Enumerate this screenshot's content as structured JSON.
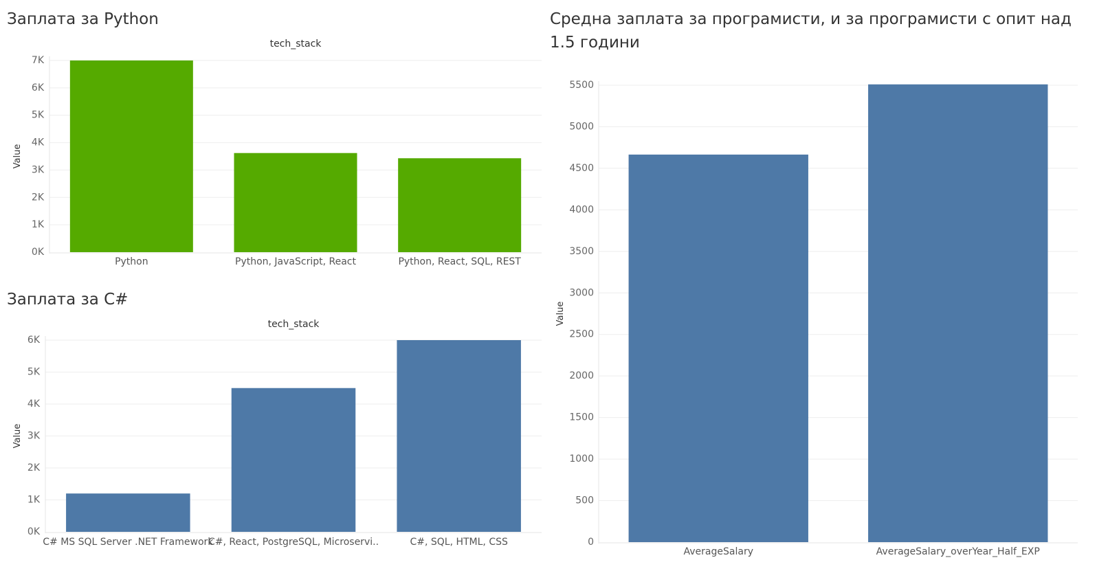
{
  "chart_data": [
    {
      "type": "bar",
      "title": "Заплата за Python",
      "header": "tech_stack",
      "ylabel": "Value",
      "categories": [
        "Python",
        "Python, JavaScript, React",
        "Python, React, SQL, REST"
      ],
      "values": [
        7000,
        3620,
        3430
      ],
      "ylim": [
        0,
        7000
      ],
      "yticks": [
        0,
        1000,
        2000,
        3000,
        4000,
        5000,
        6000,
        7000
      ],
      "ytick_labels": [
        "0K",
        "1K",
        "2K",
        "3K",
        "4K",
        "5K",
        "6K",
        "7K"
      ],
      "color": "#55AA00",
      "grid": true
    },
    {
      "type": "bar",
      "title": "Заплата за C#",
      "header": "tech_stack",
      "ylabel": "Value",
      "categories": [
        "C# MS SQL Server .NET Framework",
        "C#, React, PostgreSQL, Microservi..",
        "C#, SQL, HTML, CSS"
      ],
      "values": [
        1200,
        4500,
        6000
      ],
      "ylim": [
        0,
        6000
      ],
      "yticks": [
        0,
        1000,
        2000,
        3000,
        4000,
        5000,
        6000
      ],
      "ytick_labels": [
        "0K",
        "1K",
        "2K",
        "3K",
        "4K",
        "5K",
        "6K"
      ],
      "color": "#4E79A7",
      "grid": true
    },
    {
      "type": "bar",
      "title": "Средна заплата за програмисти, и за програмисти с опит над 1.5 години",
      "ylabel": "Value",
      "categories": [
        "AverageSalary",
        "AverageSalary_overYear_Half_EXP"
      ],
      "values": [
        4665,
        5510
      ],
      "ylim": [
        0,
        5500
      ],
      "yticks": [
        0,
        500,
        1000,
        1500,
        2000,
        2500,
        3000,
        3500,
        4000,
        4500,
        5000,
        5500
      ],
      "ytick_labels": [
        "0",
        "500",
        "1000",
        "1500",
        "2000",
        "2500",
        "3000",
        "3500",
        "4000",
        "4500",
        "5000",
        "5500"
      ],
      "color": "#4E79A7",
      "grid": true
    }
  ]
}
